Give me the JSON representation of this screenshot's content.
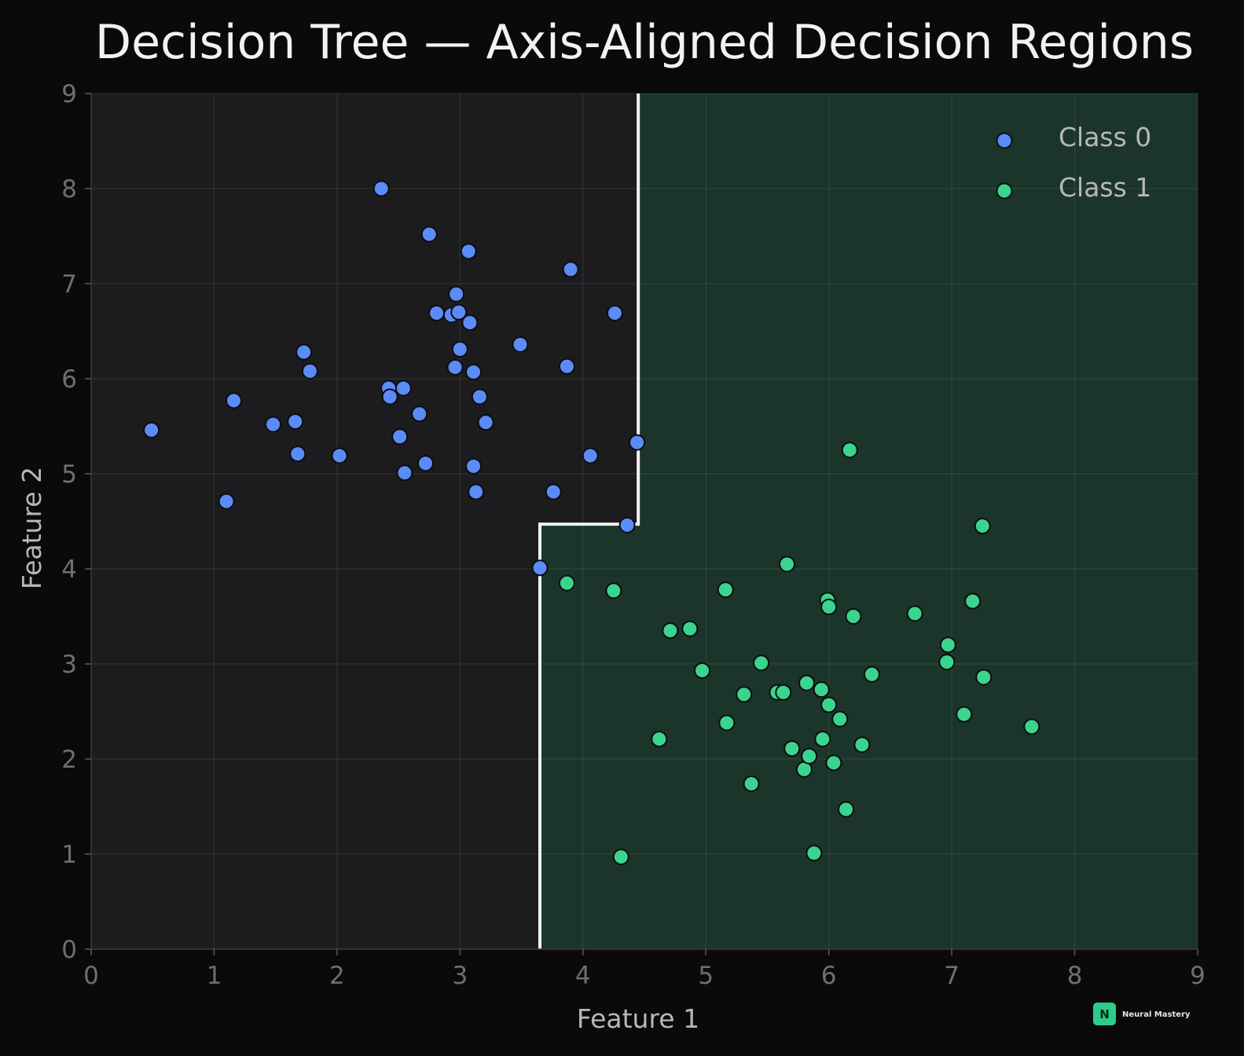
{
  "chart_data": {
    "type": "scatter",
    "title": "Decision Tree — Axis-Aligned Decision Regions",
    "xlabel": "Feature 1",
    "ylabel": "Feature 2",
    "xlim": [
      0,
      9
    ],
    "ylim": [
      0,
      9
    ],
    "xticks": [
      "0",
      "1",
      "2",
      "3",
      "4",
      "5",
      "6",
      "7",
      "8",
      "9"
    ],
    "yticks": [
      "0",
      "1",
      "2",
      "3",
      "4",
      "5",
      "6",
      "7",
      "8",
      "9"
    ],
    "grid": true,
    "legend_position": "top-right",
    "background": "#0a0a0a",
    "plot_background": "#1c1c1e",
    "decision_regions": {
      "class0_color": "#1c1c1e",
      "class1_color": "#1b352b",
      "boundary_color": "#f2f2f2",
      "class1_region_vertices": [
        [
          3.65,
          0
        ],
        [
          3.65,
          4.47
        ],
        [
          4.45,
          4.47
        ],
        [
          4.45,
          9
        ],
        [
          9,
          9
        ],
        [
          9,
          0
        ]
      ]
    },
    "series": [
      {
        "name": "Class 0",
        "color": "#5b8bf7",
        "points": [
          [
            0.49,
            5.46
          ],
          [
            1.1,
            4.71
          ],
          [
            1.16,
            5.77
          ],
          [
            1.48,
            5.52
          ],
          [
            1.66,
            5.55
          ],
          [
            1.68,
            5.21
          ],
          [
            1.73,
            6.28
          ],
          [
            1.78,
            6.08
          ],
          [
            2.02,
            5.19
          ],
          [
            2.36,
            8.0
          ],
          [
            2.42,
            5.9
          ],
          [
            2.43,
            5.81
          ],
          [
            2.51,
            5.39
          ],
          [
            2.54,
            5.9
          ],
          [
            2.55,
            5.01
          ],
          [
            2.67,
            5.63
          ],
          [
            2.72,
            5.11
          ],
          [
            2.75,
            7.52
          ],
          [
            2.81,
            6.69
          ],
          [
            2.93,
            6.67
          ],
          [
            2.96,
            6.12
          ],
          [
            2.97,
            6.89
          ],
          [
            2.99,
            6.7
          ],
          [
            3.0,
            6.31
          ],
          [
            3.07,
            7.34
          ],
          [
            3.08,
            6.59
          ],
          [
            3.11,
            6.07
          ],
          [
            3.11,
            5.08
          ],
          [
            3.13,
            4.81
          ],
          [
            3.16,
            5.81
          ],
          [
            3.21,
            5.54
          ],
          [
            3.49,
            6.36
          ],
          [
            3.65,
            4.01
          ],
          [
            3.76,
            4.81
          ],
          [
            3.87,
            6.13
          ],
          [
            3.9,
            7.15
          ],
          [
            4.06,
            5.19
          ],
          [
            4.26,
            6.69
          ],
          [
            4.36,
            4.46
          ],
          [
            4.44,
            5.33
          ]
        ]
      },
      {
        "name": "Class 1",
        "color": "#3ad48f",
        "points": [
          [
            3.87,
            3.85
          ],
          [
            4.25,
            3.77
          ],
          [
            4.31,
            0.97
          ],
          [
            4.62,
            2.21
          ],
          [
            4.71,
            3.35
          ],
          [
            4.87,
            3.37
          ],
          [
            4.97,
            2.93
          ],
          [
            5.16,
            3.78
          ],
          [
            5.17,
            2.38
          ],
          [
            5.31,
            2.68
          ],
          [
            5.37,
            1.74
          ],
          [
            5.45,
            3.01
          ],
          [
            5.58,
            2.7
          ],
          [
            5.63,
            2.7
          ],
          [
            5.66,
            4.05
          ],
          [
            5.7,
            2.11
          ],
          [
            5.8,
            1.89
          ],
          [
            5.82,
            2.8
          ],
          [
            5.84,
            2.03
          ],
          [
            5.88,
            1.01
          ],
          [
            5.94,
            2.73
          ],
          [
            5.95,
            2.21
          ],
          [
            5.99,
            3.67
          ],
          [
            6.0,
            3.6
          ],
          [
            6.0,
            2.57
          ],
          [
            6.04,
            1.96
          ],
          [
            6.09,
            2.42
          ],
          [
            6.14,
            1.47
          ],
          [
            6.17,
            5.25
          ],
          [
            6.2,
            3.5
          ],
          [
            6.27,
            2.15
          ],
          [
            6.35,
            2.89
          ],
          [
            6.7,
            3.53
          ],
          [
            6.96,
            3.02
          ],
          [
            6.97,
            3.2
          ],
          [
            7.1,
            2.47
          ],
          [
            7.17,
            3.66
          ],
          [
            7.25,
            4.45
          ],
          [
            7.26,
            2.86
          ],
          [
            7.65,
            2.34
          ]
        ]
      }
    ]
  },
  "branding": {
    "logo_letter": "N",
    "logo_text": "Neural Mastery",
    "logo_color": "#2ecc8a"
  }
}
